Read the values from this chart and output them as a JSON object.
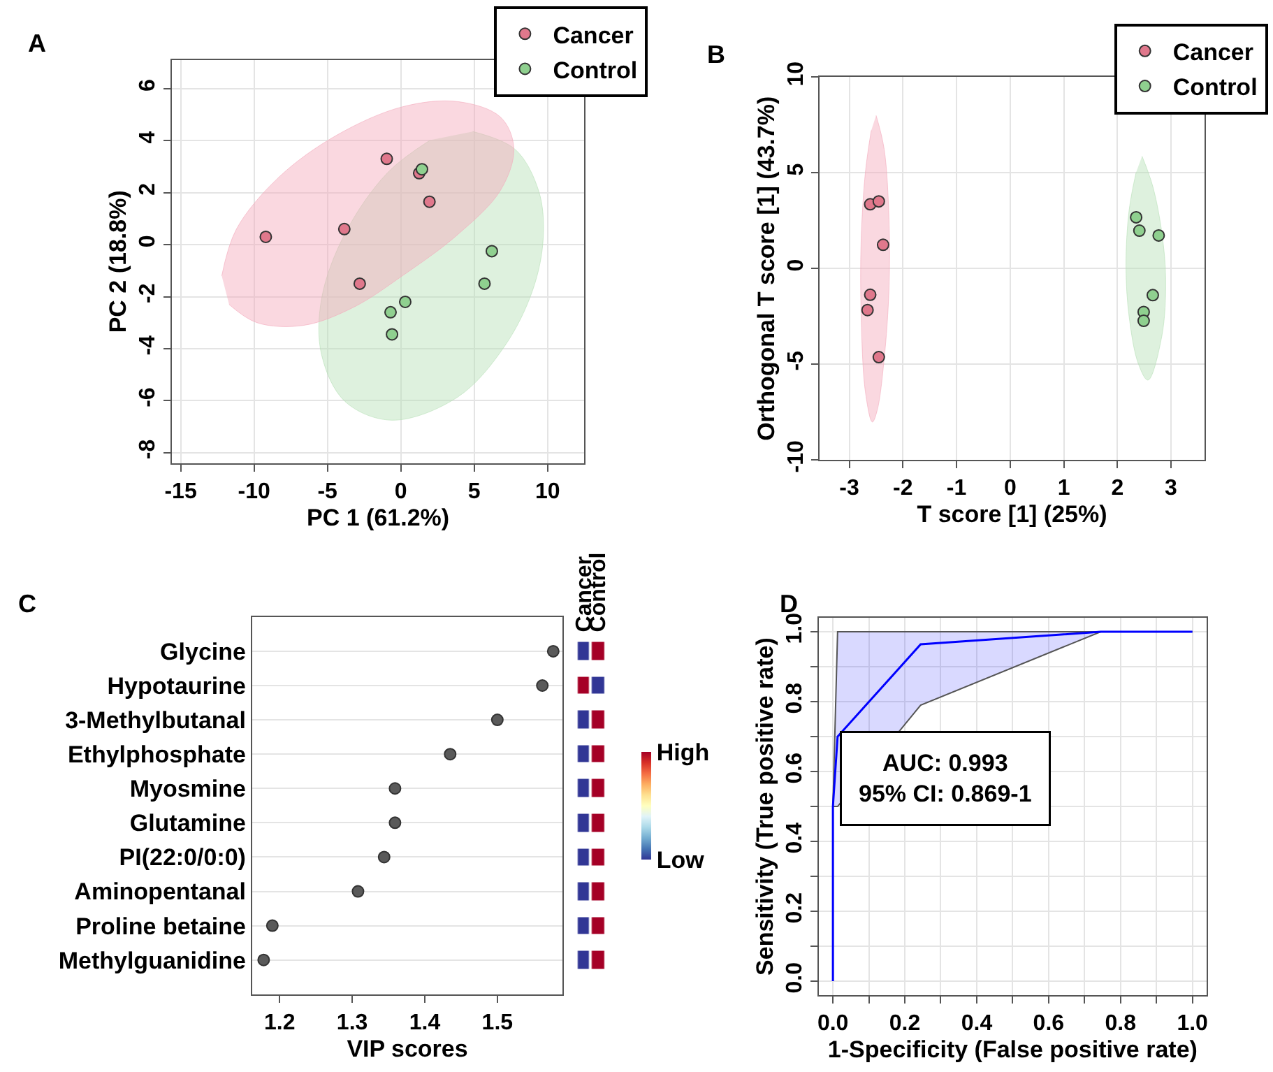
{
  "chart_data": [
    {
      "type": "scatter",
      "title": "A",
      "xlabel": "PC 1 (61.2%)",
      "ylabel": "PC 2 (18.8%)",
      "xlim": [
        -15.6,
        12.5
      ],
      "ylim": [
        -8.4,
        7.1
      ],
      "xticks": [
        -15,
        -10,
        -5,
        0,
        5,
        10
      ],
      "yticks": [
        -8,
        -6,
        -4,
        -2,
        0,
        2,
        4,
        6
      ],
      "grid": true,
      "legend": "top right",
      "marker": "circle",
      "series": [
        {
          "type": "area",
          "marker": "none",
          "color": "#b5dfb5",
          "x": [
            4.9,
            7.8,
            9.4,
            9.7,
            9.0,
            7.1,
            3.9,
            -0.6,
            -3.8,
            -5.4,
            -5.4,
            -3.8,
            -0.9,
            2.0
          ],
          "values": [
            4.35,
            3.66,
            2.05,
            0.25,
            -1.72,
            -3.88,
            -5.85,
            -6.75,
            -6.03,
            -4.23,
            -2.08,
            0.43,
            2.77,
            4.02
          ]
        },
        {
          "type": "area",
          "marker": "none",
          "color": "#f4a9bb",
          "x": [
            -12.2,
            -11.2,
            -8.3,
            -4.4,
            0.1,
            3.9,
            6.8,
            7.7,
            6.8,
            3.9,
            0.1,
            -3.2,
            -6.6,
            -9.8,
            -11.7
          ],
          "values": [
            -1.2,
            0.6,
            2.6,
            4.2,
            5.3,
            5.5,
            4.9,
            3.7,
            2.1,
            0.4,
            -1.2,
            -2.4,
            -3.1,
            -3.0,
            -2.3
          ]
        },
        {
          "name": "Cancer",
          "color": "#e0788c",
          "x": [
            -9.2,
            -3.85,
            -0.96,
            1.25,
            1.95,
            -2.8
          ],
          "values": [
            0.3,
            0.6,
            3.3,
            2.75,
            1.65,
            -1.5
          ]
        },
        {
          "name": "Control",
          "color": "#8fd08f",
          "x": [
            1.44,
            6.2,
            5.7,
            0.3,
            -0.7,
            -0.6
          ],
          "values": [
            2.9,
            -0.25,
            -1.5,
            -2.2,
            -2.6,
            -3.45
          ]
        }
      ]
    },
    {
      "type": "scatter",
      "title": "B",
      "xlabel": "T score [1] (25%)",
      "ylabel": "Orthogonal T score [1] (43.7%)",
      "xlim": [
        -3.55,
        3.62
      ],
      "ylim": [
        -10,
        10
      ],
      "xticks": [
        -3,
        -2,
        -1,
        0,
        1,
        2,
        3
      ],
      "yticks": [
        -10,
        -5,
        0,
        5,
        10
      ],
      "grid": true,
      "legend": "top right",
      "marker": "circle",
      "series": [
        {
          "type": "area",
          "marker": "none",
          "color": "#f4a9bb",
          "x": [
            -2.5,
            -2.35,
            -2.26,
            -2.26,
            -2.35,
            -2.48,
            -2.57,
            -2.7,
            -2.78,
            -2.78,
            -2.7,
            -2.59
          ],
          "values": [
            8.0,
            6.24,
            2.58,
            -1.08,
            -4.73,
            -7.41,
            -8.02,
            -6.44,
            -2.29,
            1.37,
            5.03,
            7.22
          ]
        },
        {
          "type": "area",
          "marker": "none",
          "color": "#b5dfb5",
          "x": [
            2.46,
            2.66,
            2.83,
            2.9,
            2.83,
            2.57,
            2.39,
            2.22,
            2.16,
            2.22,
            2.35
          ],
          "values": [
            5.87,
            4.29,
            1.85,
            -0.59,
            -3.51,
            -5.83,
            -4.97,
            -2.54,
            0.15,
            3.07,
            5.03
          ]
        },
        {
          "name": "Cancer",
          "color": "#e0788c",
          "x": [
            -2.61,
            -2.45,
            -2.37,
            -2.61,
            -2.66,
            -2.45
          ],
          "values": [
            3.36,
            3.51,
            1.24,
            -1.37,
            -2.17,
            -4.63
          ]
        },
        {
          "name": "Control",
          "color": "#8fd08f",
          "x": [
            2.35,
            2.41,
            2.77,
            2.66,
            2.49,
            2.49
          ],
          "values": [
            2.68,
            1.98,
            1.73,
            -1.39,
            -2.27,
            -2.73
          ]
        }
      ]
    },
    {
      "type": "scatter",
      "title": "C",
      "orientation": "horizontal",
      "xlabel": "VIP scores",
      "categories": [
        "Glycine",
        "Hypotaurine",
        "3-Methylbutanal",
        "Ethylphosphate",
        "Myosmine",
        "Glutamine",
        "PI(22:0/0:0)",
        "Aminopentanal",
        "Proline betaine",
        "Methylguanidine"
      ],
      "values": [
        1.577,
        1.562,
        1.5,
        1.435,
        1.359,
        1.359,
        1.344,
        1.308,
        1.19,
        1.178
      ],
      "color": "#5a5a5a",
      "xlim": [
        1.162,
        1.59
      ],
      "xticks": [
        1.2,
        1.3,
        1.4,
        1.5
      ],
      "grid": "y",
      "marker": "circle"
    },
    {
      "type": "heatmap",
      "categories": [
        "Cancer",
        "Control"
      ],
      "y_categories": [
        null,
        null,
        null,
        null,
        null,
        null,
        null,
        null,
        null,
        null
      ],
      "cells": [
        [
          0,
          1
        ],
        [
          1,
          0
        ],
        [
          0,
          1
        ],
        [
          0,
          1
        ],
        [
          0,
          1
        ],
        [
          0,
          1
        ],
        [
          0,
          1
        ],
        [
          0,
          1
        ],
        [
          0,
          1
        ],
        [
          0,
          1
        ]
      ],
      "clim": [
        0,
        1
      ],
      "cticks": [
        {
          "value": 1,
          "label": "High"
        },
        {
          "value": 0,
          "label": "Low"
        }
      ]
    },
    {
      "type": "line",
      "title": "D",
      "xlabel": "1-Specificity (False positive rate)",
      "ylabel": "Sensitivity (True positive rate)",
      "xlim": [
        -0.04,
        1.04
      ],
      "ylim": [
        -0.04,
        1.04
      ],
      "xticks": [
        {
          "value": 0,
          "label": "0.0"
        },
        {
          "value": 0.1,
          "label": null
        },
        {
          "value": 0.2,
          "label": "0.2"
        },
        {
          "value": 0.3,
          "label": null
        },
        {
          "value": 0.4,
          "label": "0.4"
        },
        {
          "value": 0.5,
          "label": null
        },
        {
          "value": 0.6,
          "label": "0.6"
        },
        {
          "value": 0.7,
          "label": null
        },
        {
          "value": 0.8,
          "label": "0.8"
        },
        {
          "value": 0.9,
          "label": null
        },
        {
          "value": 1,
          "label": "1.0"
        }
      ],
      "yticks": [
        {
          "value": 0,
          "label": "0.0"
        },
        {
          "value": 0.1,
          "label": null
        },
        {
          "value": 0.2,
          "label": "0.2"
        },
        {
          "value": 0.3,
          "label": null
        },
        {
          "value": 0.4,
          "label": "0.4"
        },
        {
          "value": 0.5,
          "label": null
        },
        {
          "value": 0.6,
          "label": "0.6"
        },
        {
          "value": 0.7,
          "label": null
        },
        {
          "value": 0.8,
          "label": "0.8"
        },
        {
          "value": 0.9,
          "label": null
        },
        {
          "value": 1,
          "label": "1.0"
        }
      ],
      "grid": true,
      "annotations": [
        "AUC: 0.993\n95% CI: 0.869-1"
      ],
      "series": [
        {
          "color": "#0000ff",
          "x": [
            0,
            0,
            0.013,
            0.244,
            0.745,
            1
          ],
          "values": [
            0,
            0.5,
            0.7,
            0.964,
            1,
            1
          ],
          "lower": [
            0,
            0.5,
            0.5,
            0.79,
            1,
            1
          ],
          "upper": [
            0,
            0.5,
            1,
            1,
            1,
            1
          ]
        }
      ]
    }
  ]
}
